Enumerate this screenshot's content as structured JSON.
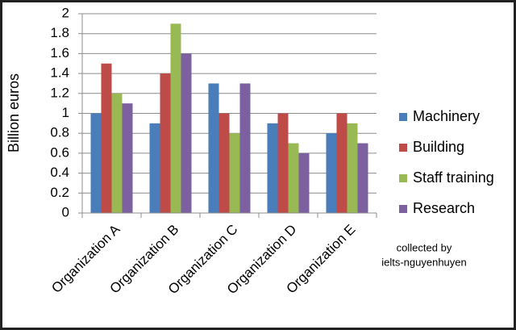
{
  "chart_data": {
    "type": "bar",
    "y_label": "Billion euros",
    "categories": [
      "Organization A",
      "Organization B",
      "Organization C",
      "Organization D",
      "Organization E"
    ],
    "series": [
      {
        "name": "Machinery",
        "color": "#4a7ebb",
        "values": [
          1.0,
          0.9,
          1.3,
          0.9,
          0.8
        ]
      },
      {
        "name": "Building",
        "color": "#be4b48",
        "values": [
          1.5,
          1.4,
          1.0,
          1.0,
          1.0
        ]
      },
      {
        "name": "Staff training",
        "color": "#98b954",
        "values": [
          1.2,
          1.9,
          0.8,
          0.7,
          0.9
        ]
      },
      {
        "name": "Research",
        "color": "#7d60a0",
        "values": [
          1.1,
          1.6,
          1.3,
          0.6,
          0.7
        ]
      }
    ],
    "ylim": [
      0,
      2
    ],
    "yticks": [
      0,
      0.2,
      0.4,
      0.6,
      0.8,
      1,
      1.2,
      1.4,
      1.6,
      1.8,
      2
    ],
    "grid": true,
    "legend": "right",
    "annotation": [
      "collected by",
      "ielts-nguyenhuyen"
    ]
  }
}
